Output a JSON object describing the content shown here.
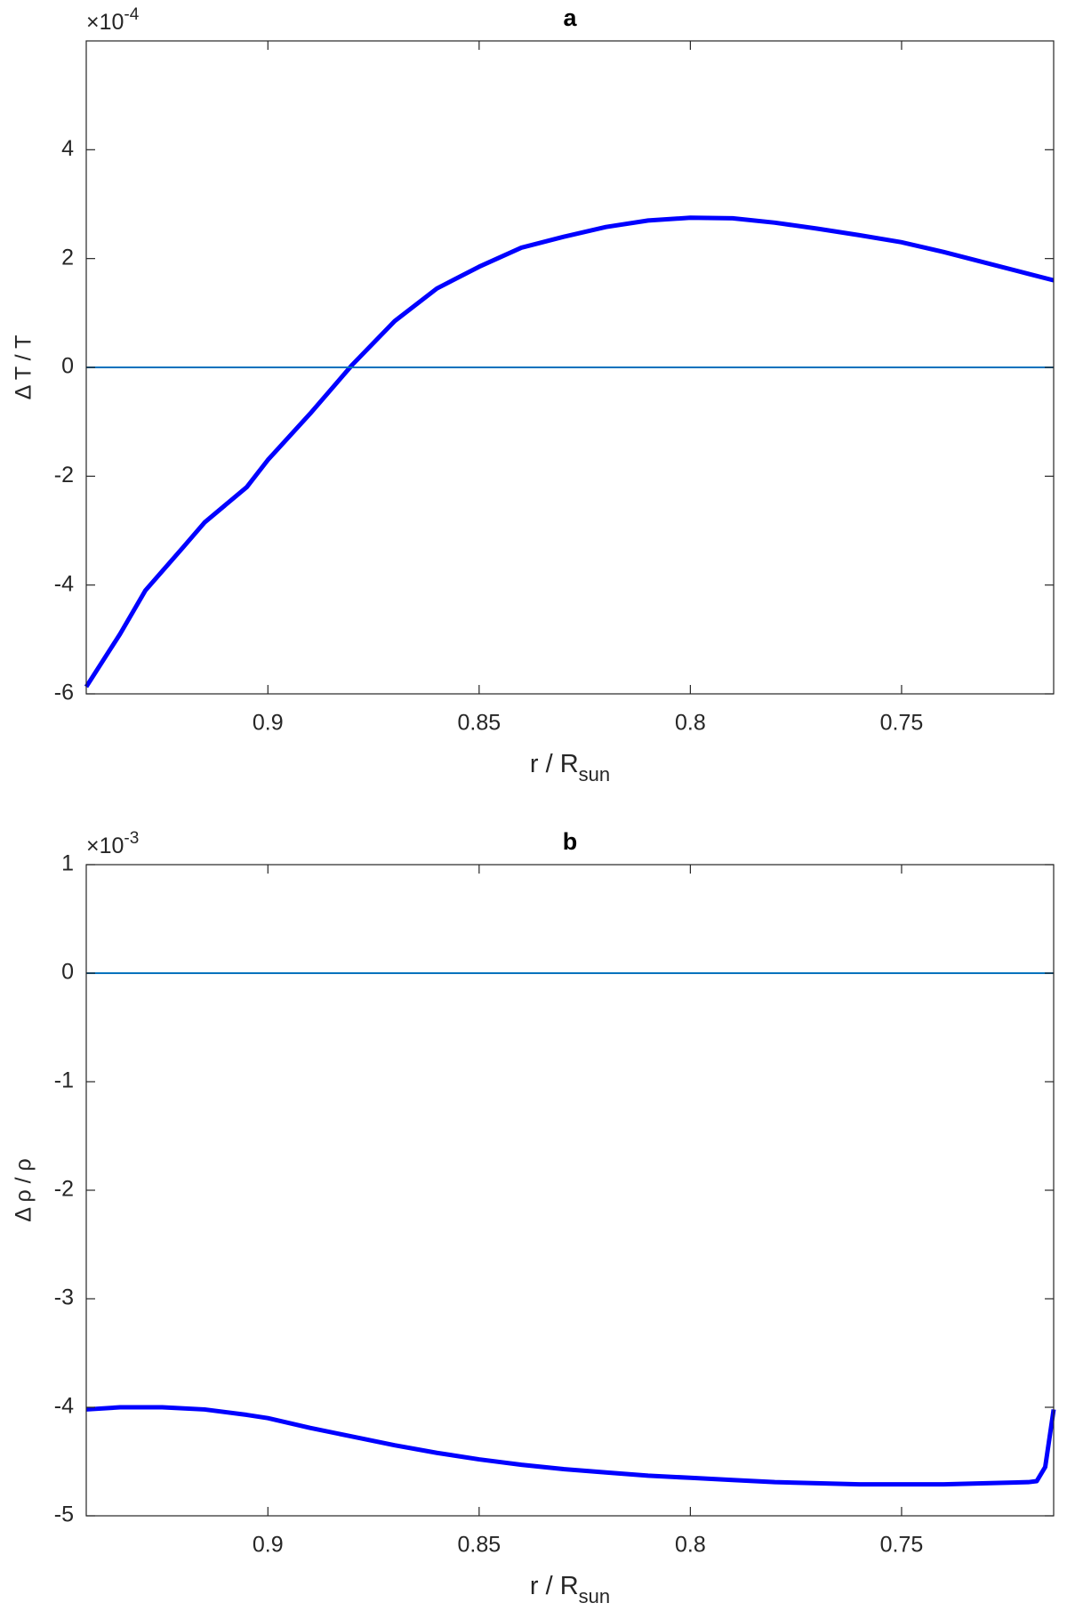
{
  "chart_data": [
    {
      "type": "line",
      "title": "a",
      "xlabel": "r / R",
      "xlabel_sub": "sun",
      "ylabel": "Δ T / T",
      "exponent_base": "×10",
      "exponent_power": "-4",
      "xlim": [
        0.943,
        0.714
      ],
      "xticks": [
        0.9,
        0.85,
        0.8,
        0.75
      ],
      "ylim": [
        -6,
        6
      ],
      "yticks": [
        -6,
        -4,
        -2,
        0,
        2,
        4
      ],
      "series": [
        {
          "color": "#0000ff",
          "x": [
            0.943,
            0.935,
            0.929,
            0.92,
            0.915,
            0.905,
            0.9,
            0.89,
            0.88,
            0.87,
            0.86,
            0.85,
            0.84,
            0.83,
            0.82,
            0.81,
            0.8,
            0.79,
            0.78,
            0.77,
            0.76,
            0.75,
            0.74,
            0.73,
            0.72,
            0.714
          ],
          "values": [
            -5.87,
            -4.9,
            -4.1,
            -3.3,
            -2.85,
            -2.2,
            -1.7,
            -0.85,
            0.05,
            0.85,
            1.45,
            1.85,
            2.2,
            2.4,
            2.58,
            2.7,
            2.75,
            2.74,
            2.66,
            2.55,
            2.43,
            2.3,
            2.12,
            1.92,
            1.72,
            1.6
          ]
        },
        {
          "color": "#0072bd",
          "x": [
            0.943,
            0.714
          ],
          "values": [
            0,
            0
          ]
        }
      ]
    },
    {
      "type": "line",
      "title": "b",
      "xlabel": "r / R",
      "xlabel_sub": "sun",
      "ylabel": "Δ ρ / ρ",
      "exponent_base": "×10",
      "exponent_power": "-3",
      "xlim": [
        0.943,
        0.714
      ],
      "xticks": [
        0.9,
        0.85,
        0.8,
        0.75
      ],
      "ylim": [
        -5,
        1
      ],
      "yticks": [
        -5,
        -4,
        -3,
        -2,
        -1,
        0,
        1
      ],
      "series": [
        {
          "color": "#0000ff",
          "x": [
            0.943,
            0.935,
            0.925,
            0.915,
            0.905,
            0.9,
            0.89,
            0.88,
            0.87,
            0.86,
            0.85,
            0.84,
            0.83,
            0.82,
            0.81,
            0.8,
            0.79,
            0.78,
            0.77,
            0.76,
            0.75,
            0.74,
            0.73,
            0.72,
            0.718,
            0.716,
            0.714
          ],
          "values": [
            -4.02,
            -4.0,
            -4.0,
            -4.02,
            -4.07,
            -4.1,
            -4.19,
            -4.27,
            -4.35,
            -4.42,
            -4.48,
            -4.53,
            -4.57,
            -4.6,
            -4.63,
            -4.65,
            -4.67,
            -4.69,
            -4.7,
            -4.71,
            -4.71,
            -4.71,
            -4.7,
            -4.69,
            -4.68,
            -4.55,
            -4.02
          ]
        },
        {
          "color": "#0072bd",
          "x": [
            0.943,
            0.714
          ],
          "values": [
            0,
            0
          ]
        }
      ]
    }
  ]
}
